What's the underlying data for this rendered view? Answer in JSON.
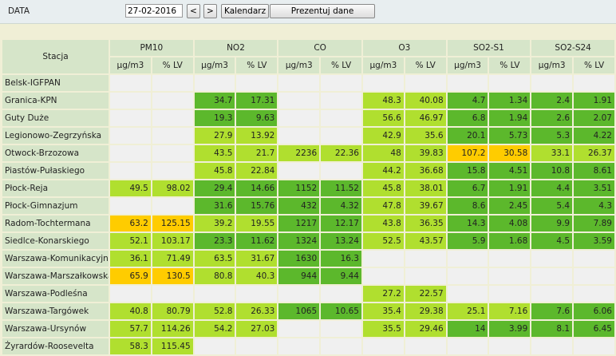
{
  "header": {
    "label": "DATA",
    "date": "27-02-2016",
    "buttons": [
      "<",
      ">",
      "Kalendarz",
      "Prezentuj dane"
    ]
  },
  "table": {
    "station_header": "Stacja",
    "pollutants": [
      "PM10",
      "NO2",
      "CO",
      "O3",
      "SO2-S1",
      "SO2-S24"
    ],
    "units": [
      "µg/m3",
      "% LV"
    ],
    "rows": [
      {
        "station": "Belsk-IGFPAN",
        "values": [
          null,
          null,
          null,
          null,
          null,
          null,
          null,
          null,
          null,
          null,
          null,
          null
        ],
        "colors": [
          null,
          null,
          null,
          null,
          null,
          null
        ]
      },
      {
        "station": "Granica-KPN",
        "values": [
          null,
          null,
          34.7,
          17.31,
          null,
          null,
          48.3,
          40.08,
          4.7,
          1.34,
          2.4,
          1.91
        ],
        "colors": [
          null,
          "#5cb82c",
          null,
          "#b0df2f",
          "#5cb82c",
          "#5cb82c"
        ]
      },
      {
        "station": "Guty Duże",
        "values": [
          null,
          null,
          19.3,
          9.63,
          null,
          null,
          56.6,
          46.97,
          6.8,
          1.94,
          2.6,
          2.07
        ],
        "colors": [
          null,
          "#5cb82c",
          null,
          "#b0df2f",
          "#5cb82c",
          "#5cb82c"
        ]
      },
      {
        "station": "Legionowo-Zegrzyńska",
        "values": [
          null,
          null,
          27.9,
          13.92,
          null,
          null,
          42.9,
          35.6,
          20.1,
          5.73,
          5.3,
          4.22
        ],
        "colors": [
          null,
          "#b0df2f",
          null,
          "#b0df2f",
          "#5cb82c",
          "#5cb82c"
        ]
      },
      {
        "station": "Otwock-Brzozowa",
        "values": [
          null,
          null,
          43.5,
          21.7,
          2236,
          22.36,
          48,
          39.83,
          107.2,
          30.58,
          33.1,
          26.37
        ],
        "colors": [
          null,
          "#b0df2f",
          "#b0df2f",
          "#b0df2f",
          "#ffcc00",
          "#b0df2f"
        ]
      },
      {
        "station": "Piastów-Pułaskiego",
        "values": [
          null,
          null,
          45.8,
          22.84,
          null,
          null,
          44.2,
          36.68,
          15.8,
          4.51,
          10.8,
          8.61
        ],
        "colors": [
          null,
          "#b0df2f",
          null,
          "#b0df2f",
          "#5cb82c",
          "#5cb82c"
        ]
      },
      {
        "station": "Płock-Reja",
        "values": [
          49.5,
          98.02,
          29.4,
          14.66,
          1152,
          11.52,
          45.8,
          38.01,
          6.7,
          1.91,
          4.4,
          3.51
        ],
        "colors": [
          "#b0df2f",
          "#5cb82c",
          "#5cb82c",
          "#b0df2f",
          "#5cb82c",
          "#5cb82c"
        ]
      },
      {
        "station": "Płock-Gimnazjum",
        "values": [
          null,
          null,
          31.6,
          15.76,
          432,
          4.32,
          47.8,
          39.67,
          8.6,
          2.45,
          5.4,
          4.3
        ],
        "colors": [
          null,
          "#5cb82c",
          "#5cb82c",
          "#b0df2f",
          "#5cb82c",
          "#5cb82c"
        ]
      },
      {
        "station": "Radom-Tochtermana",
        "values": [
          63.2,
          125.15,
          39.2,
          19.55,
          1217,
          12.17,
          43.8,
          36.35,
          14.3,
          4.08,
          9.9,
          7.89
        ],
        "colors": [
          "#ffcc00",
          "#b0df2f",
          "#5cb82c",
          "#b0df2f",
          "#5cb82c",
          "#5cb82c"
        ]
      },
      {
        "station": "Siedlce-Konarskiego",
        "values": [
          52.1,
          103.17,
          23.3,
          11.62,
          1324,
          13.24,
          52.5,
          43.57,
          5.9,
          1.68,
          4.5,
          3.59
        ],
        "colors": [
          "#b0df2f",
          "#5cb82c",
          "#5cb82c",
          "#b0df2f",
          "#5cb82c",
          "#5cb82c"
        ]
      },
      {
        "station": "Warszawa-Komunikacyjna",
        "values": [
          36.1,
          71.49,
          63.5,
          31.67,
          1630,
          16.3,
          null,
          null,
          null,
          null,
          null,
          null
        ],
        "colors": [
          "#b0df2f",
          "#b0df2f",
          "#5cb82c",
          null,
          null,
          null
        ]
      },
      {
        "station": "Warszawa-Marszałkowska",
        "values": [
          65.9,
          130.5,
          80.8,
          40.3,
          944,
          9.44,
          null,
          null,
          null,
          null,
          null,
          null
        ],
        "colors": [
          "#ffcc00",
          "#b0df2f",
          "#5cb82c",
          null,
          null,
          null
        ]
      },
      {
        "station": "Warszawa-Podleśna",
        "values": [
          null,
          null,
          null,
          null,
          null,
          null,
          27.2,
          22.57,
          null,
          null,
          null,
          null
        ],
        "colors": [
          null,
          null,
          null,
          "#b0df2f",
          null,
          null
        ]
      },
      {
        "station": "Warszawa-Targówek",
        "values": [
          40.8,
          80.79,
          52.8,
          26.33,
          1065,
          10.65,
          35.4,
          29.38,
          25.1,
          7.16,
          7.6,
          6.06
        ],
        "colors": [
          "#b0df2f",
          "#b0df2f",
          "#5cb82c",
          "#b0df2f",
          "#b0df2f",
          "#5cb82c"
        ]
      },
      {
        "station": "Warszawa-Ursynów",
        "values": [
          57.7,
          114.26,
          54.2,
          27.03,
          null,
          null,
          35.5,
          29.46,
          14,
          3.99,
          8.1,
          6.45
        ],
        "colors": [
          "#b0df2f",
          "#b0df2f",
          null,
          "#b0df2f",
          "#5cb82c",
          "#5cb82c"
        ]
      },
      {
        "station": "Żyrardów-Roosevelta",
        "values": [
          58.3,
          115.45,
          null,
          null,
          null,
          null,
          null,
          null,
          null,
          null,
          null,
          null
        ],
        "colors": [
          "#b0df2f",
          null,
          null,
          null,
          null,
          null
        ]
      }
    ]
  }
}
